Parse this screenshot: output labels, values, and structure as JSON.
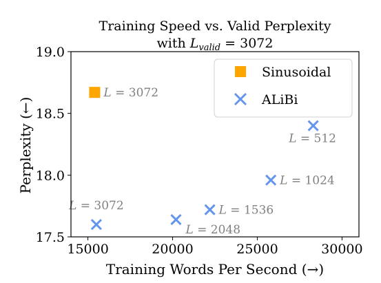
{
  "chart_data": {
    "type": "scatter",
    "title_line1": "Training Speed vs. Valid Perplexity",
    "title_line2_prefix": "with ",
    "title_line2_var": "L",
    "title_line2_sub": "valid",
    "title_line2_suffix": " = 3072",
    "xlabel": "Training Words Per Second (→)",
    "ylabel": "Perplexity (←)",
    "xlim": [
      14000,
      31000
    ],
    "ylim": [
      17.5,
      19.0
    ],
    "xticks": [
      15000,
      20000,
      25000,
      30000
    ],
    "yticks": [
      17.5,
      18.0,
      18.5,
      19.0
    ],
    "xtick_labels": [
      "15000",
      "20000",
      "25000",
      "30000"
    ],
    "ytick_labels": [
      "17.5",
      "18.0",
      "18.5",
      "19.0"
    ],
    "legend_position": "top-right",
    "series": [
      {
        "name": "Sinusoidal",
        "marker": "square",
        "color": "#FFA500",
        "points": [
          {
            "x": 15400,
            "y": 18.67,
            "label": "L = 3072"
          }
        ]
      },
      {
        "name": "ALiBi",
        "marker": "x",
        "color": "#6495ED",
        "points": [
          {
            "x": 15500,
            "y": 17.6,
            "label": "L = 3072"
          },
          {
            "x": 20200,
            "y": 17.64,
            "label": "L = 2048"
          },
          {
            "x": 22200,
            "y": 17.72,
            "label": "L = 1536"
          },
          {
            "x": 25800,
            "y": 17.96,
            "label": "L = 1024"
          },
          {
            "x": 28300,
            "y": 18.4,
            "label": "L = 512"
          }
        ]
      }
    ]
  }
}
